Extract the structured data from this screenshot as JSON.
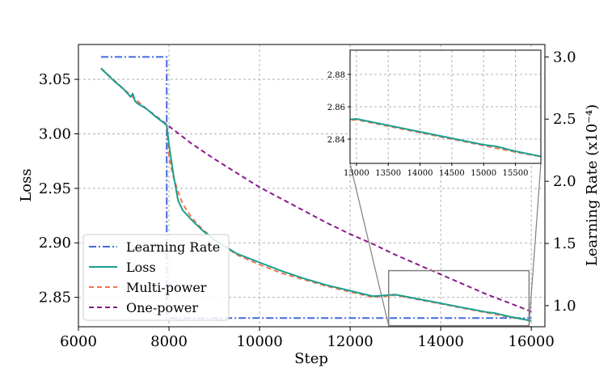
{
  "chart_data": {
    "type": "line",
    "xlabel": "Step",
    "ylabel": "Loss",
    "ylabel_right": "Learning Rate (x10⁻⁴)",
    "xlim": [
      6000,
      16300
    ],
    "ylim": [
      2.823,
      3.082
    ],
    "ylim_right": [
      0.83,
      3.1
    ],
    "x_ticks": [
      "6000",
      "8000",
      "10000",
      "12000",
      "14000",
      "16000"
    ],
    "x_tick_values": [
      6000,
      8000,
      10000,
      12000,
      14000,
      16000
    ],
    "y_ticks": [
      "3.05",
      "3.00",
      "2.95",
      "2.90",
      "2.85"
    ],
    "y_tick_values": [
      3.05,
      3.0,
      2.95,
      2.9,
      2.85
    ],
    "y_right_ticks": [
      "3.0",
      "2.5",
      "2.0",
      "1.5",
      "1.0"
    ],
    "y_right_tick_values": [
      3.0,
      2.5,
      2.0,
      1.5,
      1.0
    ],
    "grid": true,
    "legend_position": "lower-left",
    "colors": {
      "learning_rate": "#4169e1",
      "loss": "#1a9e8f",
      "multi_power": "#f4764f",
      "one_power": "#8b1a8b",
      "box": "#808080"
    },
    "series": [
      {
        "name": "Learning Rate",
        "axis": "right",
        "style": "dashdot",
        "x": [
          6500,
          7950,
          7950,
          16000
        ],
        "y": [
          3.0,
          3.0,
          0.9,
          0.9
        ]
      },
      {
        "name": "Loss",
        "axis": "left",
        "style": "solid",
        "x": [
          6500,
          6650,
          6800,
          7000,
          7150,
          7200,
          7250,
          7300,
          7500,
          7700,
          7950,
          8000,
          8100,
          8200,
          8300,
          8500,
          8750,
          9000,
          9500,
          10000,
          10500,
          11000,
          11500,
          12000,
          12500,
          13000,
          13500,
          14000,
          14500,
          15000,
          15200,
          15500,
          16000
        ],
        "y": [
          3.06,
          3.054,
          3.048,
          3.041,
          3.034,
          3.037,
          3.03,
          3.028,
          3.023,
          3.016,
          3.008,
          2.99,
          2.962,
          2.939,
          2.93,
          2.921,
          2.911,
          2.903,
          2.89,
          2.882,
          2.874,
          2.867,
          2.861,
          2.856,
          2.851,
          2.8525,
          2.8485,
          2.8445,
          2.8405,
          2.8365,
          2.8355,
          2.8325,
          2.8285
        ]
      },
      {
        "name": "Multi-power",
        "axis": "left",
        "style": "dashed",
        "x": [
          6500,
          7000,
          7500,
          7950,
          8000,
          8100,
          8200,
          8300,
          8500,
          8750,
          9000,
          9500,
          10000,
          10500,
          11000,
          11500,
          12000,
          12500,
          13000,
          13500,
          14000,
          14500,
          15000,
          15500,
          16000
        ],
        "y": [
          3.06,
          3.041,
          3.023,
          3.008,
          2.978,
          2.96,
          2.947,
          2.936,
          2.923,
          2.912,
          2.903,
          2.889,
          2.88,
          2.872,
          2.866,
          2.86,
          2.855,
          2.85,
          2.852,
          2.848,
          2.844,
          2.84,
          2.836,
          2.832,
          2.8285
        ]
      },
      {
        "name": "One-power",
        "axis": "left",
        "style": "dashed",
        "x": [
          6500,
          7000,
          7500,
          8000,
          8500,
          9000,
          9500,
          10000,
          10500,
          11000,
          11500,
          12000,
          12500,
          13000,
          13500,
          14000,
          14500,
          15000,
          15500,
          16000
        ],
        "y": [
          3.06,
          3.041,
          3.023,
          3.007,
          2.991,
          2.977,
          2.964,
          2.951,
          2.94,
          2.929,
          2.918,
          2.908,
          2.899,
          2.889,
          2.88,
          2.871,
          2.862,
          2.853,
          2.845,
          2.837
        ]
      }
    ],
    "inset": {
      "xlim": [
        12900,
        15900
      ],
      "ylim": [
        2.825,
        2.895
      ],
      "x_ticks": [
        "13000",
        "13500",
        "14000",
        "14500",
        "15000",
        "15500"
      ],
      "x_tick_values": [
        13000,
        13500,
        14000,
        14500,
        15000,
        15500
      ],
      "y_ticks": [
        "2.88",
        "2.86",
        "2.84"
      ],
      "y_tick_values": [
        2.88,
        2.86,
        2.84
      ],
      "zoom_region": {
        "x": [
          12850,
          15950
        ],
        "y": [
          2.824,
          2.8745
        ]
      }
    }
  }
}
